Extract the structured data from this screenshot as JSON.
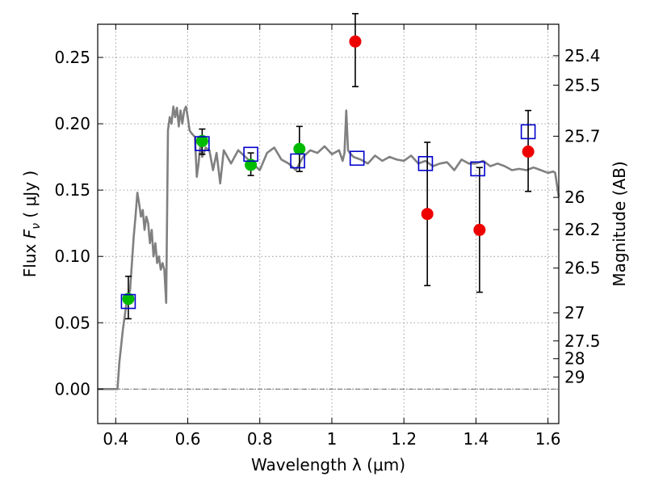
{
  "chart_data": {
    "type": "scatter",
    "xlabel": "Wavelength  λ (μm)",
    "ylabel": "Flux  F_ν  ( μJy )",
    "ylabel_parts": {
      "prefix": "Flux  ",
      "symbol": "F",
      "subscript": "ν",
      "suffix": "  ( μJy )"
    },
    "y2label": "Magnitude (AB)",
    "xlim": [
      0.35,
      1.63
    ],
    "ylim": [
      -0.026,
      0.275
    ],
    "grid": true,
    "x_ticks": [
      0.4,
      0.6,
      0.8,
      1.0,
      1.2,
      1.4,
      1.6
    ],
    "x_tick_labels": [
      "0.4",
      "0.6",
      "0.8",
      "1",
      "1.2",
      "1.4",
      "1.6"
    ],
    "y_ticks": [
      0.0,
      0.05,
      0.1,
      0.15,
      0.2,
      0.25
    ],
    "y_tick_labels": [
      "0.00",
      "0.05",
      "0.10",
      "0.15",
      "0.20",
      "0.25"
    ],
    "y2_ticks": [
      {
        "label": "25.4",
        "flux": 0.2513
      },
      {
        "label": "25.5",
        "flux": 0.2291
      },
      {
        "label": "25.7",
        "flux": 0.1906
      },
      {
        "label": "26",
        "flux": 0.1445
      },
      {
        "label": "26.2",
        "flux": 0.1202
      },
      {
        "label": "26.5",
        "flux": 0.0912
      },
      {
        "label": "27",
        "flux": 0.0575
      },
      {
        "label": "27.5",
        "flux": 0.0363
      },
      {
        "label": "28",
        "flux": 0.0229
      },
      {
        "label": "29",
        "flux": 0.0091
      }
    ],
    "colors": {
      "model": "#808080",
      "model_points": "#0000cc",
      "green": "#00bb00",
      "red": "#ee0000",
      "errorbars": "#000000",
      "grid": "#808080",
      "zero_line": "#555555"
    },
    "series": [
      {
        "kind": "model_spectrum",
        "x": [
          0.35,
          0.405,
          0.41,
          0.42,
          0.43,
          0.44,
          0.45,
          0.455,
          0.46,
          0.465,
          0.47,
          0.475,
          0.48,
          0.485,
          0.49,
          0.495,
          0.5,
          0.505,
          0.51,
          0.515,
          0.52,
          0.525,
          0.53,
          0.535,
          0.54,
          0.545,
          0.55,
          0.555,
          0.56,
          0.565,
          0.57,
          0.575,
          0.58,
          0.585,
          0.59,
          0.595,
          0.6,
          0.605,
          0.61,
          0.62,
          0.625,
          0.63,
          0.635,
          0.64,
          0.65,
          0.66,
          0.67,
          0.68,
          0.69,
          0.7,
          0.72,
          0.74,
          0.76,
          0.78,
          0.8,
          0.82,
          0.84,
          0.86,
          0.88,
          0.9,
          0.92,
          0.94,
          0.96,
          0.98,
          1.0,
          1.02,
          1.03,
          1.035,
          1.04,
          1.045,
          1.05,
          1.06,
          1.08,
          1.1,
          1.12,
          1.14,
          1.16,
          1.18,
          1.2,
          1.22,
          1.24,
          1.26,
          1.28,
          1.3,
          1.32,
          1.34,
          1.36,
          1.38,
          1.4,
          1.42,
          1.44,
          1.46,
          1.48,
          1.5,
          1.52,
          1.54,
          1.56,
          1.58,
          1.6,
          1.615,
          1.62,
          1.63
        ],
        "y": [
          0.0,
          0.0,
          0.02,
          0.045,
          0.065,
          0.075,
          0.115,
          0.13,
          0.148,
          0.14,
          0.13,
          0.135,
          0.12,
          0.13,
          0.125,
          0.11,
          0.12,
          0.1,
          0.11,
          0.095,
          0.1,
          0.09,
          0.095,
          0.09,
          0.065,
          0.195,
          0.205,
          0.2,
          0.213,
          0.205,
          0.212,
          0.198,
          0.21,
          0.2,
          0.21,
          0.213,
          0.205,
          0.195,
          0.193,
          0.19,
          0.16,
          0.17,
          0.184,
          0.175,
          0.182,
          0.18,
          0.165,
          0.178,
          0.155,
          0.18,
          0.17,
          0.18,
          0.175,
          0.17,
          0.165,
          0.178,
          0.182,
          0.173,
          0.17,
          0.165,
          0.175,
          0.18,
          0.178,
          0.183,
          0.177,
          0.18,
          0.172,
          0.178,
          0.21,
          0.18,
          0.178,
          0.175,
          0.173,
          0.17,
          0.176,
          0.172,
          0.175,
          0.173,
          0.172,
          0.176,
          0.17,
          0.172,
          0.168,
          0.17,
          0.171,
          0.165,
          0.173,
          0.17,
          0.17,
          0.172,
          0.168,
          0.17,
          0.168,
          0.165,
          0.166,
          0.165,
          0.167,
          0.165,
          0.163,
          0.164,
          0.163,
          0.145
        ]
      },
      {
        "kind": "model_points",
        "marker": "open-square",
        "x": [
          0.435,
          0.64,
          0.775,
          0.905,
          1.07,
          1.26,
          1.405,
          1.545
        ],
        "y": [
          0.066,
          0.185,
          0.177,
          0.172,
          0.174,
          0.17,
          0.166,
          0.194
        ]
      },
      {
        "kind": "photometry_green",
        "marker": "filled-circle",
        "x": [
          0.435,
          0.64,
          0.775,
          0.91
        ],
        "y": [
          0.068,
          0.187,
          0.169,
          0.181
        ],
        "yerr_low": [
          0.053,
          0.177,
          0.161,
          0.164
        ],
        "yerr_high": [
          0.085,
          0.196,
          0.178,
          0.198
        ]
      },
      {
        "kind": "photometry_red",
        "marker": "filled-circle",
        "x": [
          1.065,
          1.265,
          1.41,
          1.545
        ],
        "y": [
          0.262,
          0.132,
          0.12,
          0.179
        ],
        "yerr_low": [
          0.228,
          0.078,
          0.073,
          0.149
        ],
        "yerr_high": [
          0.283,
          0.186,
          0.167,
          0.21
        ]
      }
    ]
  }
}
